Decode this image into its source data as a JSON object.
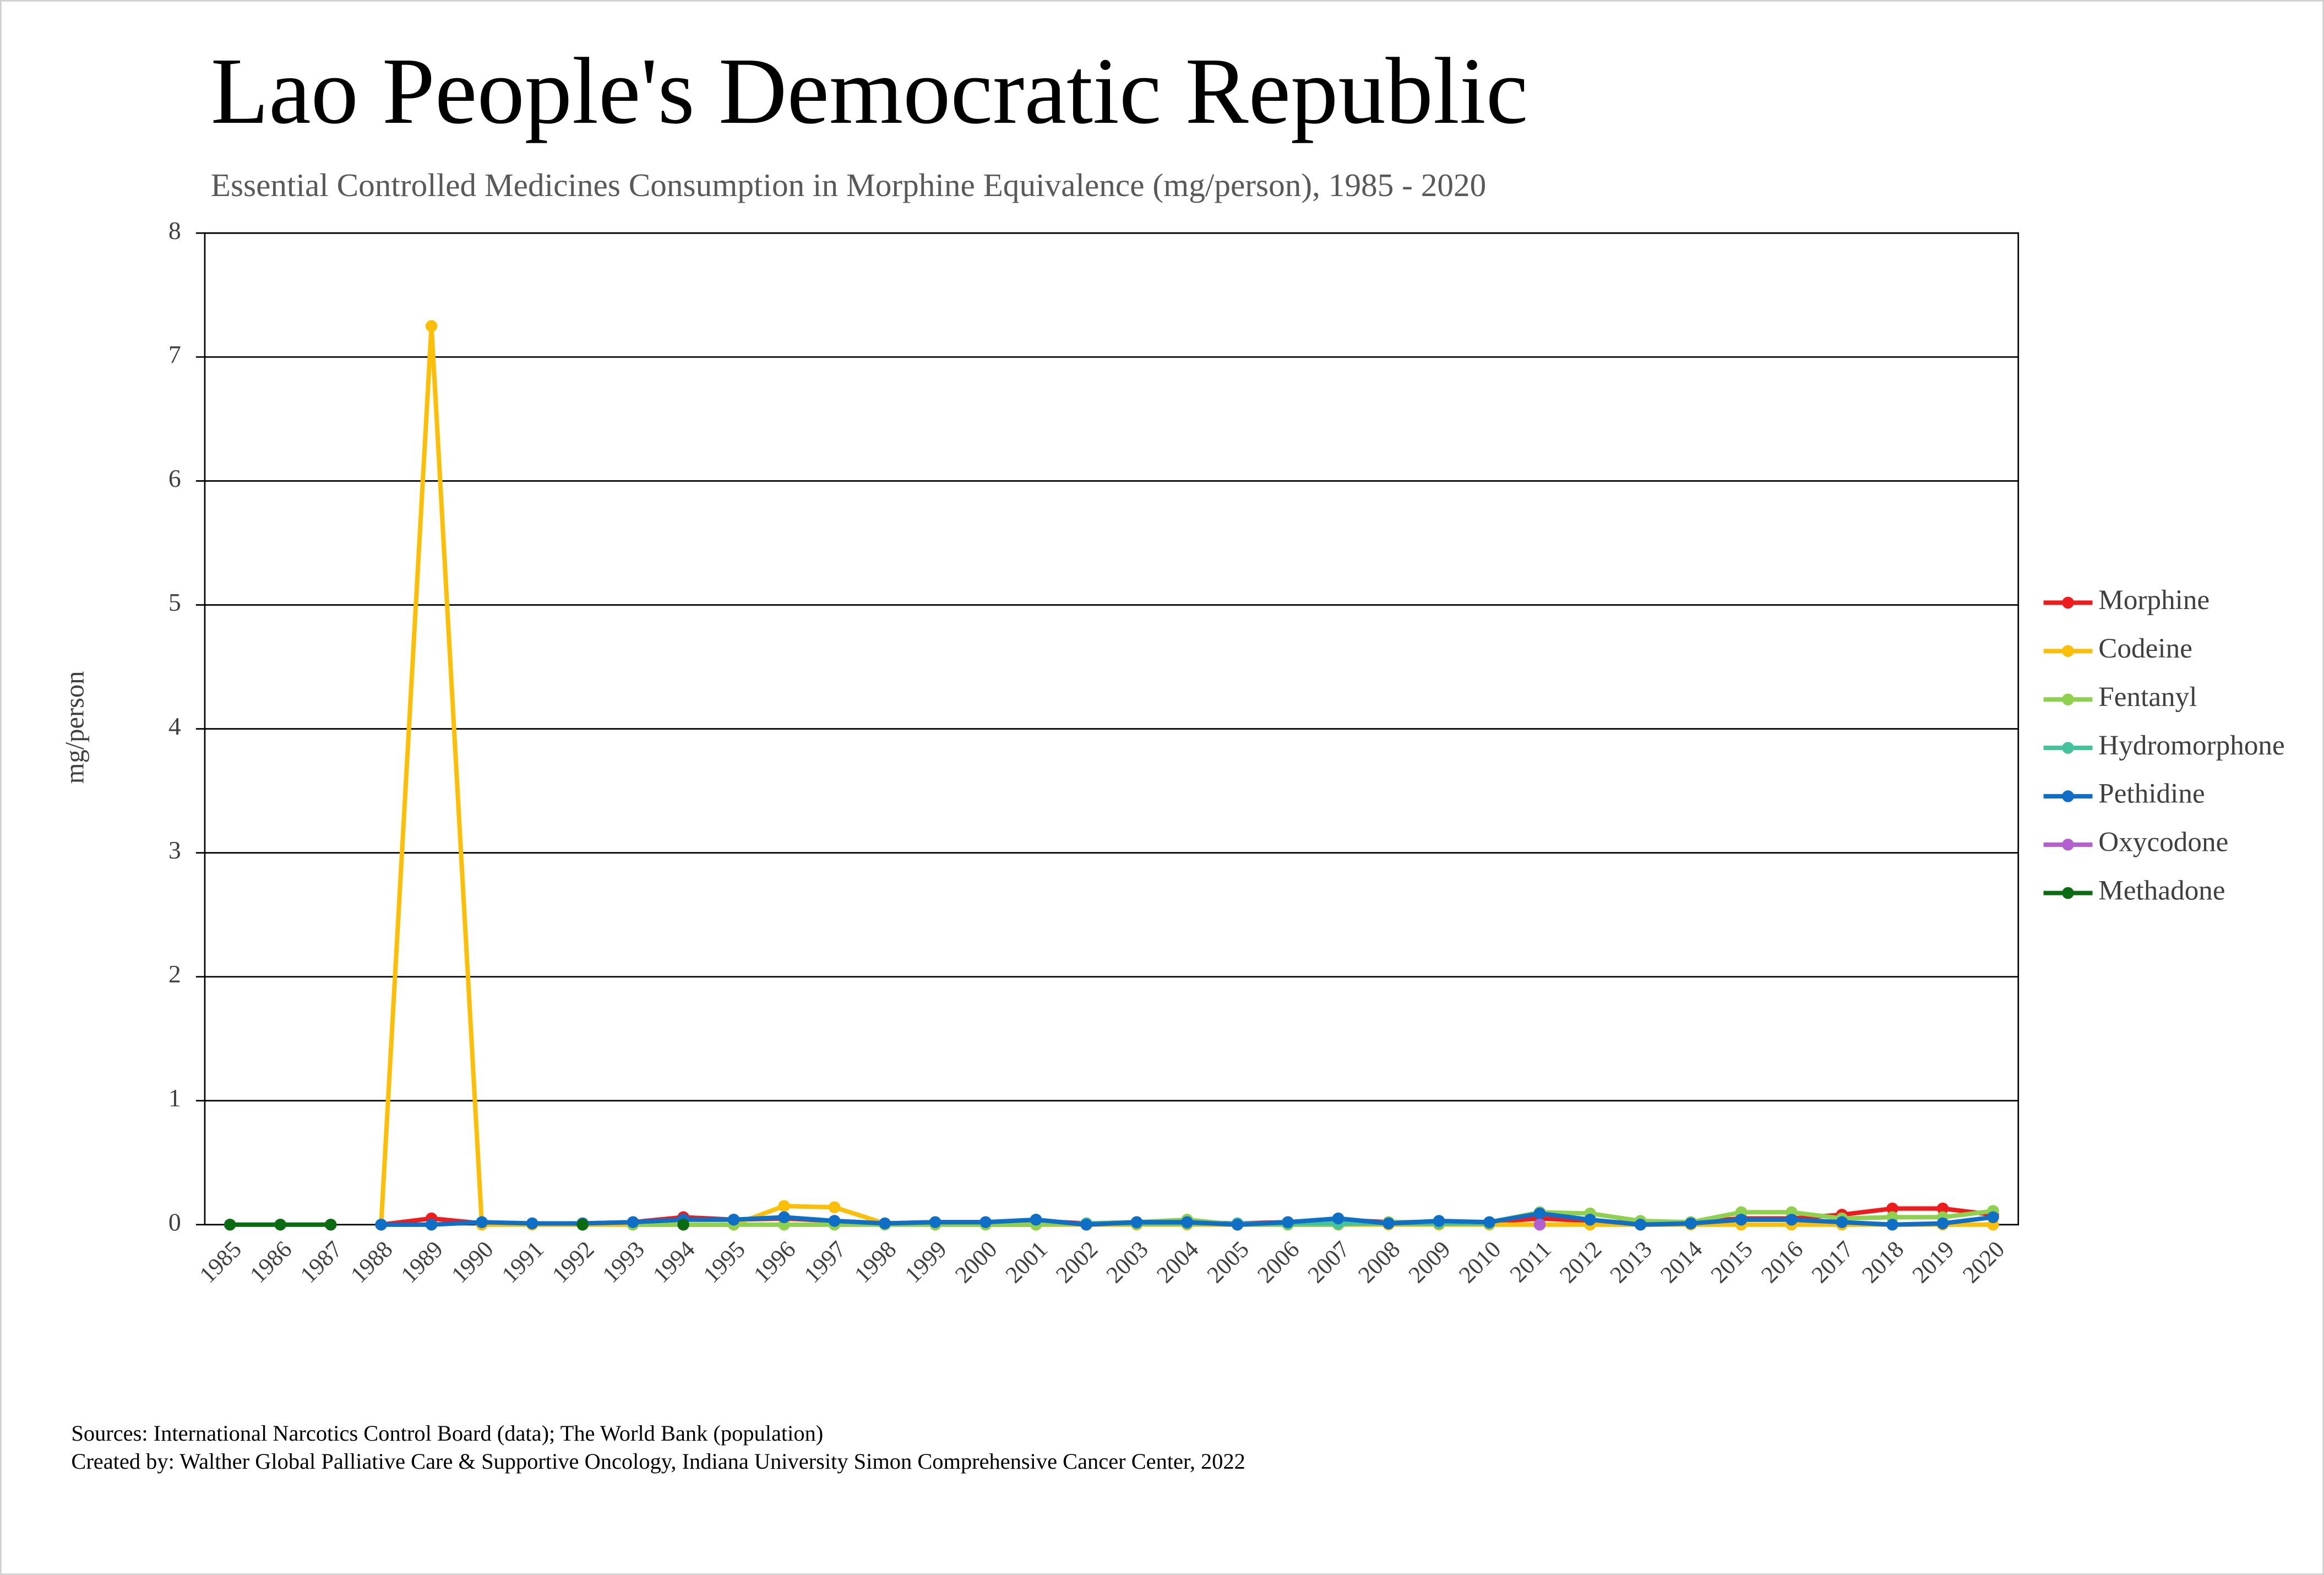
{
  "chart_data": {
    "type": "line",
    "title": "Lao People's Democratic Republic",
    "subtitle": "Essential Controlled Medicines Consumption in Morphine Equivalence (mg/person), 1985 - 2020",
    "y_label": "mg/person",
    "sources": [
      "Sources: International Narcotics Control Board (data); The World Bank (population)",
      "Created by: Walther Global Palliative Care & Supportive Oncology, Indiana University Simon Comprehensive Cancer Center, 2022"
    ],
    "categories": [
      "1985",
      "1986",
      "1987",
      "1988",
      "1989",
      "1990",
      "1991",
      "1992",
      "1993",
      "1994",
      "1995",
      "1996",
      "1997",
      "1998",
      "1999",
      "2000",
      "2001",
      "2002",
      "2003",
      "2004",
      "2005",
      "2006",
      "2007",
      "2008",
      "2009",
      "2010",
      "2011",
      "2012",
      "2013",
      "2014",
      "2015",
      "2016",
      "2017",
      "2018",
      "2019",
      "2020"
    ],
    "ylim": [
      0,
      8
    ],
    "yticks": [
      0,
      1,
      2,
      3,
      4,
      5,
      6,
      7,
      8
    ],
    "grid": true,
    "legend": "right",
    "series": [
      {
        "name": "Morphine",
        "color": "#ee1c1c",
        "values": [
          null,
          null,
          null,
          0,
          0.05,
          0.01,
          0.01,
          0.01,
          0.02,
          0.06,
          0.04,
          0.05,
          0.03,
          0.01,
          0.02,
          0.02,
          0.03,
          0.01,
          0.02,
          0.02,
          0.01,
          0.02,
          0.04,
          0.02,
          0.02,
          0.02,
          0.05,
          0.03,
          0.01,
          0.02,
          0.05,
          0.05,
          0.08,
          0.13,
          0.13,
          0.08
        ]
      },
      {
        "name": "Codeine",
        "color": "#fbbf09",
        "values": [
          null,
          null,
          null,
          0,
          7.25,
          0,
          0,
          0,
          0,
          0,
          0,
          0.15,
          0.14,
          0.01,
          0,
          0,
          0,
          0,
          0,
          0,
          0,
          0,
          0,
          0,
          0,
          0,
          0,
          0,
          0,
          0,
          0,
          0,
          0,
          0,
          0,
          0
        ]
      },
      {
        "name": "Fentanyl",
        "color": "#8fd14f",
        "values": [
          null,
          null,
          null,
          null,
          null,
          null,
          null,
          null,
          0,
          0,
          0,
          0,
          0,
          0,
          0,
          0,
          0,
          0.01,
          0.02,
          0.04,
          0,
          0,
          0,
          0.02,
          0.02,
          0.02,
          0.1,
          0.09,
          0.03,
          0.02,
          0.1,
          0.1,
          0.05,
          0.06,
          0.06,
          0.11
        ]
      },
      {
        "name": "Hydromorphone",
        "color": "#44c29e",
        "values": [
          null,
          null,
          null,
          null,
          null,
          null,
          null,
          null,
          null,
          null,
          null,
          null,
          null,
          null,
          null,
          null,
          null,
          0.01,
          0.01,
          0.01,
          0.01,
          0.01,
          0.01,
          0.01,
          0.01,
          0.01,
          null,
          null,
          null,
          null,
          null,
          null,
          null,
          null,
          null,
          null
        ]
      },
      {
        "name": "Pethidine",
        "color": "#0f6fc6",
        "values": [
          null,
          null,
          null,
          0,
          0,
          0.02,
          0.01,
          0.01,
          0.02,
          0.04,
          0.04,
          0.06,
          0.03,
          0.01,
          0.02,
          0.02,
          0.04,
          0,
          0.02,
          0.02,
          0,
          0.02,
          0.05,
          0.01,
          0.03,
          0.02,
          0.09,
          0.04,
          0,
          0.01,
          0.04,
          0.04,
          0.02,
          0,
          0.01,
          0.06
        ]
      },
      {
        "name": "Oxycodone",
        "color": "#b25fd0",
        "values": [
          null,
          null,
          null,
          null,
          null,
          null,
          null,
          null,
          null,
          null,
          null,
          null,
          null,
          null,
          null,
          null,
          null,
          null,
          null,
          null,
          null,
          null,
          null,
          null,
          null,
          null,
          0,
          null,
          null,
          null,
          null,
          null,
          null,
          null,
          null,
          null
        ]
      },
      {
        "name": "Methadone",
        "color": "#0b6b10",
        "values": [
          0,
          0,
          0,
          null,
          null,
          null,
          null,
          0,
          null,
          0,
          null,
          null,
          null,
          null,
          null,
          null,
          null,
          null,
          null,
          null,
          null,
          null,
          null,
          null,
          null,
          null,
          null,
          null,
          null,
          null,
          null,
          null,
          null,
          null,
          null,
          null
        ]
      }
    ]
  }
}
